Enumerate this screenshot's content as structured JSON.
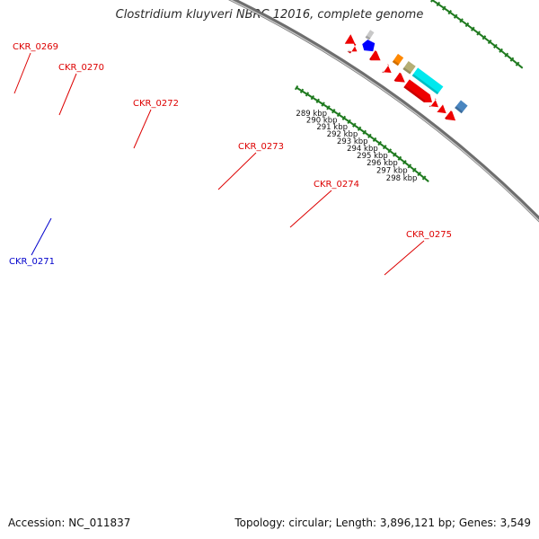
{
  "title": "Clostridium kluyveri NBRC 12016, complete genome",
  "footer": {
    "accession": "Accession: NC_011837",
    "summary": "Topology: circular; Length: 3,896,121 bp; Genes: 3,549"
  },
  "colors": {
    "backbone": "#8a8a8a",
    "tick_mark": "#1f7a1f",
    "forward_gene_label": "#dd0000",
    "reverse_gene_label": "#0000cc",
    "cds": "#ee0000",
    "trna": "#c8c8c8",
    "pseudo": "#0000ff",
    "highlight_orange": "#ff8800",
    "highlight_olive": "#b5ae74",
    "highlight_cyan": "#00e8ee",
    "highlight_steelblue": "#4a86c0"
  },
  "gene_labels": [
    {
      "name": "CKR_0269",
      "strand": "forward"
    },
    {
      "name": "CKR_0270",
      "strand": "forward"
    },
    {
      "name": "CKR_0271",
      "strand": "reverse"
    },
    {
      "name": "CKR_0272",
      "strand": "forward"
    },
    {
      "name": "CKR_0273",
      "strand": "forward"
    },
    {
      "name": "CKR_0274",
      "strand": "forward"
    },
    {
      "name": "CKR_0275",
      "strand": "forward"
    }
  ],
  "ticks": [
    {
      "label": "289 kbp"
    },
    {
      "label": "290 kbp"
    },
    {
      "label": "291 kbp"
    },
    {
      "label": "292 kbp"
    },
    {
      "label": "293 kbp"
    },
    {
      "label": "294 kbp"
    },
    {
      "label": "295 kbp"
    },
    {
      "label": "296 kbp"
    },
    {
      "label": "297 kbp"
    },
    {
      "label": "298 kbp"
    }
  ]
}
